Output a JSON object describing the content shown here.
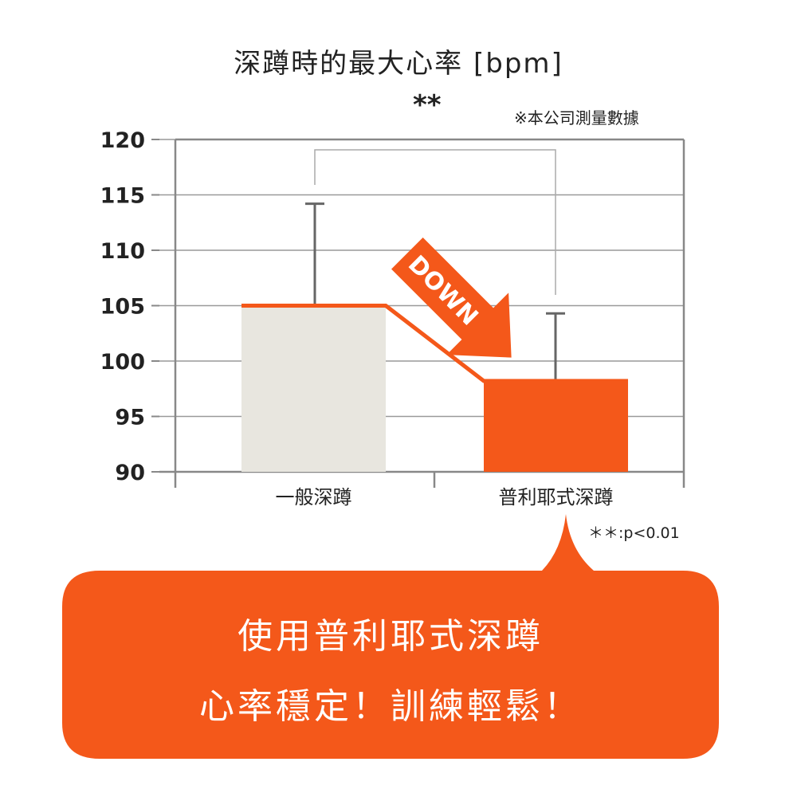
{
  "title": "深蹲時的最大心率 [bpm]",
  "significance_mark": "**",
  "source_note": "※本公司測量數據",
  "p_note": "＊＊:p<0.01",
  "arrow_label": "DOWN",
  "callout": {
    "line1": "使用普利耶式深蹲",
    "line2": "心率穩定！訓練輕鬆！"
  },
  "colors": {
    "accent": "#f4581a",
    "bar1": "#e8e6df",
    "grid": "#999999"
  },
  "chart_data": {
    "type": "bar",
    "title": "深蹲時的最大心率 [bpm]",
    "categories": [
      "一般深蹲",
      "普利耶式深蹲"
    ],
    "values": [
      105.0,
      98.2
    ],
    "error_upper": [
      114.2,
      104.3
    ],
    "ylim": [
      90,
      120
    ],
    "yticks": [
      90,
      95,
      100,
      105,
      110,
      115,
      120
    ],
    "grid": true
  }
}
